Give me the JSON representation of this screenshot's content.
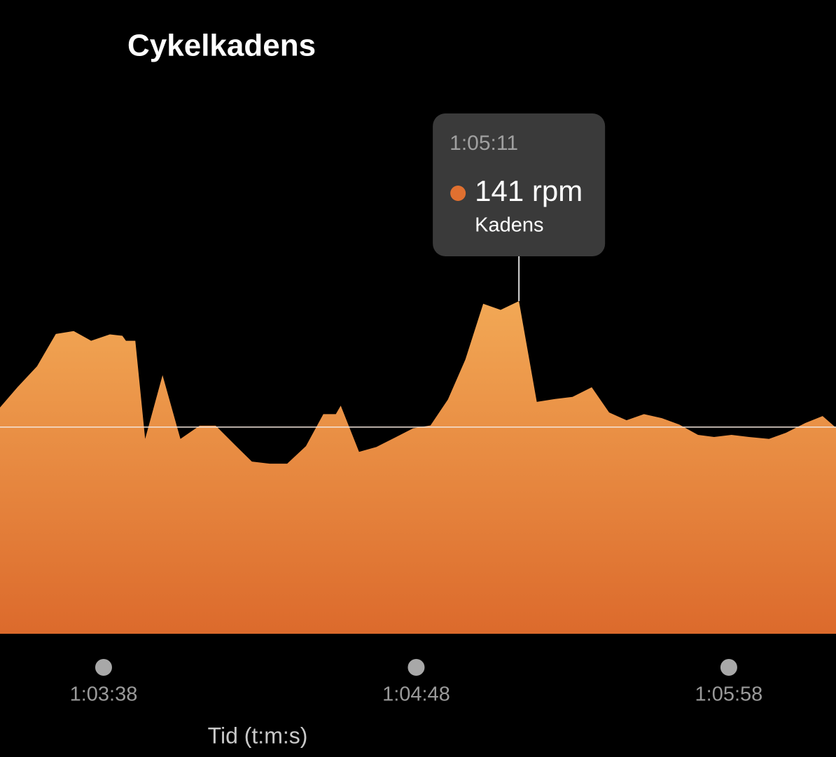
{
  "chart_data": {
    "type": "area",
    "title": "Cykelkadens",
    "x_label": "Tid (t:m:s)",
    "x": [
      3794.8,
      3798.7,
      3803.1,
      3807.3,
      3811.3,
      3815.2,
      3819.4,
      3822.2,
      3823.0,
      3825.1,
      3827.3,
      3831.2,
      3835.2,
      3839.5,
      3843.1,
      3847.0,
      3851.2,
      3855.2,
      3859.1,
      3863.3,
      3867.2,
      3870.0,
      3871.1,
      3875.2,
      3879.1,
      3883.4,
      3887.3,
      3891.2,
      3895.1,
      3899.0,
      3903.0,
      3906.9,
      3911.0,
      3915.0,
      3919.1,
      3923.0,
      3927.3,
      3931.2,
      3935.1,
      3939.0,
      3943.0,
      3946.9,
      3951.1,
      3954.7,
      3958.6,
      3962.5,
      3967.0,
      3970.8,
      3975.1,
      3979.0,
      3982.0
    ],
    "series": [
      {
        "name": "Kadens",
        "color": "#e07030",
        "values": [
          95.9,
          104.5,
          113.4,
          127.1,
          128.3,
          124.2,
          126.9,
          126.3,
          124.2,
          124.2,
          82.6,
          109.6,
          82.6,
          88.2,
          88.2,
          80.8,
          73.0,
          72.1,
          72.1,
          79.5,
          93.1,
          93.1,
          96.7,
          77.1,
          79.2,
          83.3,
          87.1,
          88.3,
          99.3,
          116.2,
          139.9,
          137.3,
          141,
          98.3,
          99.5,
          100.4,
          104.5,
          93.8,
          90.5,
          93.1,
          91.4,
          88.7,
          84.3,
          83.4,
          84.3,
          83.4,
          82.6,
          85.2,
          89.3,
          92.3,
          87.3
        ]
      }
    ],
    "reference_line": 87.6,
    "xlim": [
      3794.8,
      3982.0
    ],
    "xticks": [
      {
        "value": 3818,
        "label": "1:03:38"
      },
      {
        "value": 3888,
        "label": "1:04:48"
      },
      {
        "value": 3958,
        "label": "1:05:58"
      }
    ],
    "ylim": [
      0,
      160
    ],
    "tooltip": {
      "time": "1:05:11",
      "value_label": "141 rpm",
      "series_label": "Kadens"
    }
  }
}
